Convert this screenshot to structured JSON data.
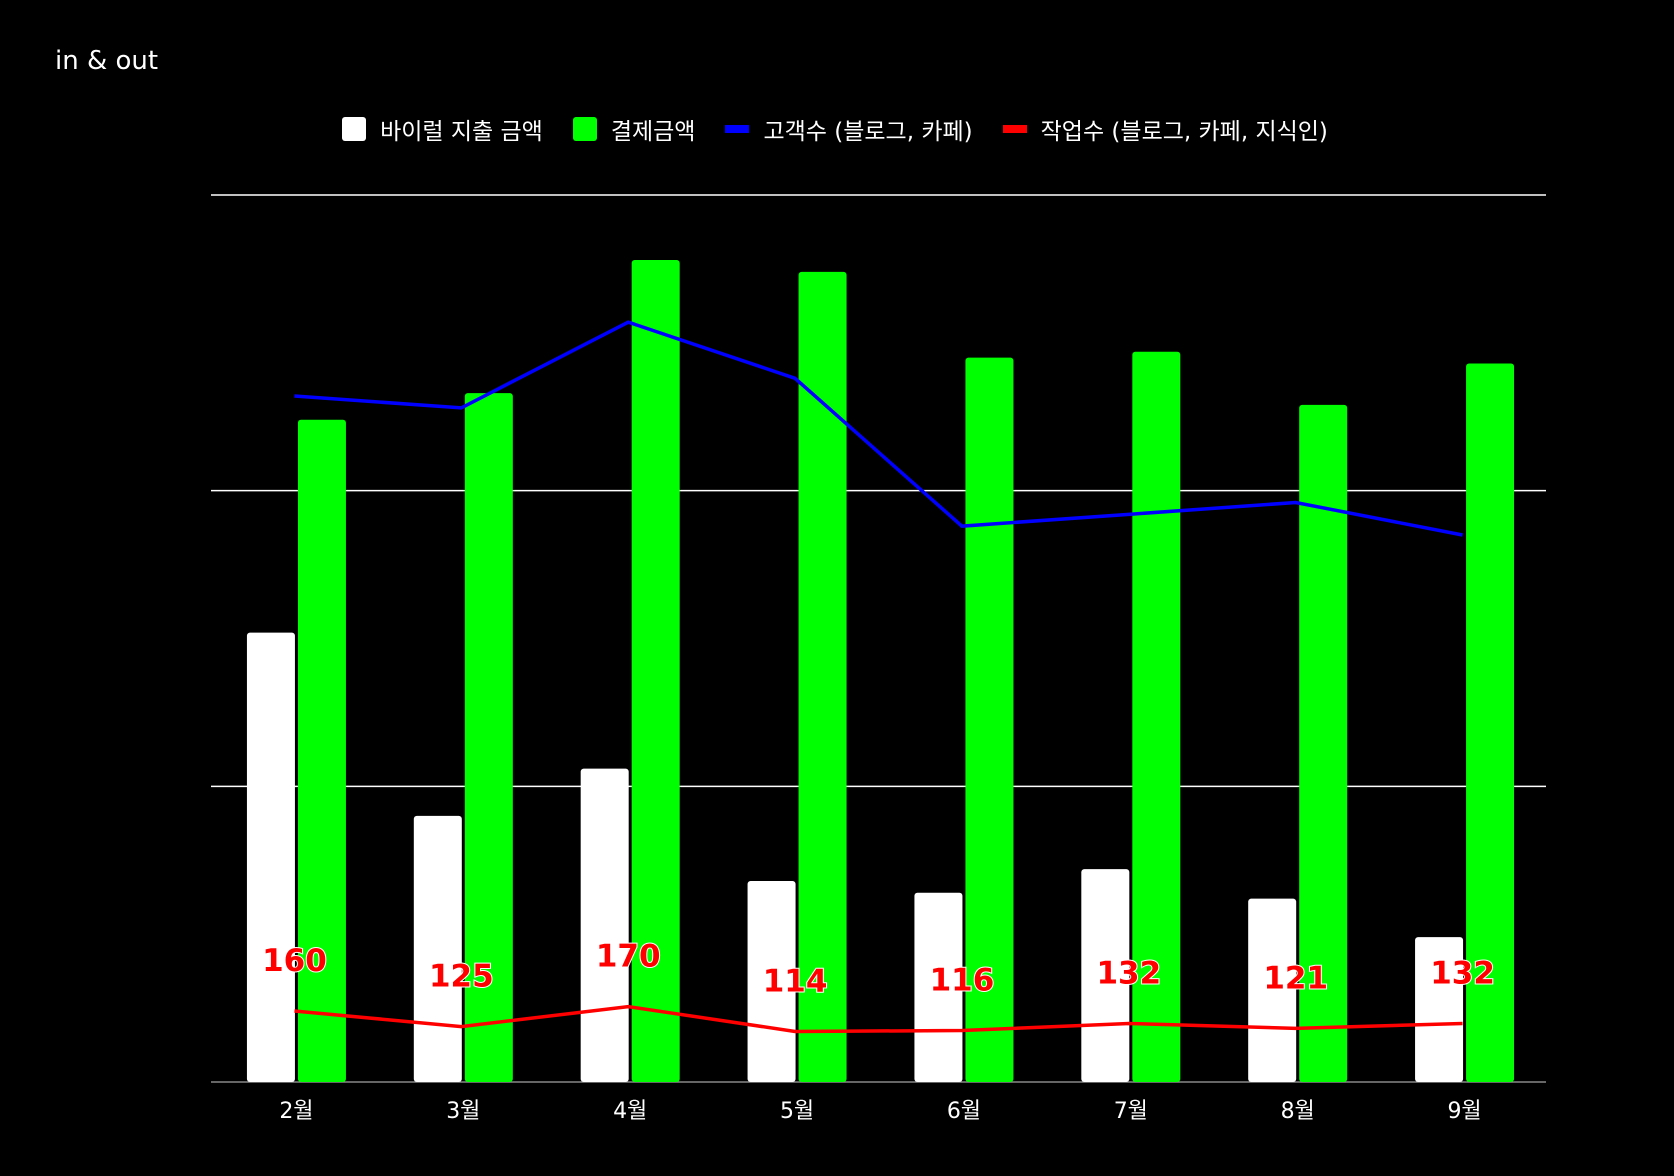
{
  "chart_data": {
    "type": "bar",
    "title": "in & out",
    "categories": [
      "2월",
      "3월",
      "4월",
      "5월",
      "6월",
      "7월",
      "8월",
      "9월"
    ],
    "ylim": [
      0,
      3
    ],
    "grid": true,
    "legend_position": "top",
    "series": [
      {
        "name": "바이럴 지출 금액",
        "kind": "bar",
        "color": "#ffffff",
        "values": [
          1.52,
          0.9,
          1.06,
          0.68,
          0.64,
          0.72,
          0.62,
          0.49
        ]
      },
      {
        "name": "결제금액",
        "kind": "bar",
        "color": "#00ff00",
        "values": [
          2.24,
          2.33,
          2.78,
          2.74,
          2.45,
          2.47,
          2.29,
          2.43
        ]
      },
      {
        "name": "고객수 (블로그, 카페)",
        "kind": "line",
        "color": "#0000ff",
        "values": [
          2.32,
          2.28,
          2.57,
          2.38,
          1.88,
          1.92,
          1.96,
          1.85
        ]
      },
      {
        "name": "작업수 (블로그, 카페, 지식인)",
        "kind": "line",
        "color": "#ff0000",
        "values": [
          160,
          125,
          170,
          114,
          116,
          132,
          121,
          132
        ],
        "data_labels": [
          "160",
          "125",
          "170",
          "114",
          "116",
          "132",
          "121",
          "132"
        ],
        "scale_max": 2000
      }
    ]
  }
}
